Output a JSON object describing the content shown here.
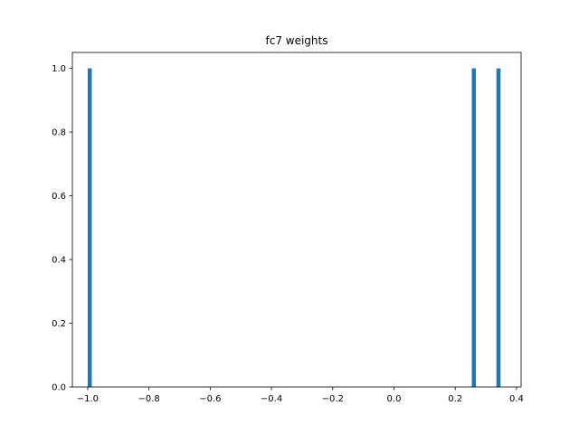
{
  "chart_data": {
    "type": "bar",
    "title": "fc7 weights",
    "xlabel": "",
    "ylabel": "",
    "xlim": [
      -1.05,
      0.415
    ],
    "ylim": [
      0.0,
      1.05
    ],
    "x_ticks": [
      -1.0,
      -0.8,
      -0.6,
      -0.4,
      -0.2,
      0.0,
      0.2,
      0.4
    ],
    "x_tick_labels": [
      "−1.0",
      "−0.8",
      "−0.6",
      "−0.4",
      "−0.2",
      "0.0",
      "0.2",
      "0.4"
    ],
    "y_ticks": [
      0.0,
      0.2,
      0.4,
      0.6,
      0.8,
      1.0
    ],
    "y_tick_labels": [
      "0.0",
      "0.2",
      "0.4",
      "0.6",
      "0.8",
      "1.0"
    ],
    "bar_width": 0.0134,
    "bars": [
      {
        "x": -0.9933,
        "value": 1
      },
      {
        "x": 0.2607,
        "value": 1
      },
      {
        "x": 0.3411,
        "value": 1
      }
    ],
    "grid": false,
    "legend": "none",
    "colors": {
      "bar": "#1f77b4",
      "axis": "#000000",
      "background": "#ffffff"
    }
  }
}
